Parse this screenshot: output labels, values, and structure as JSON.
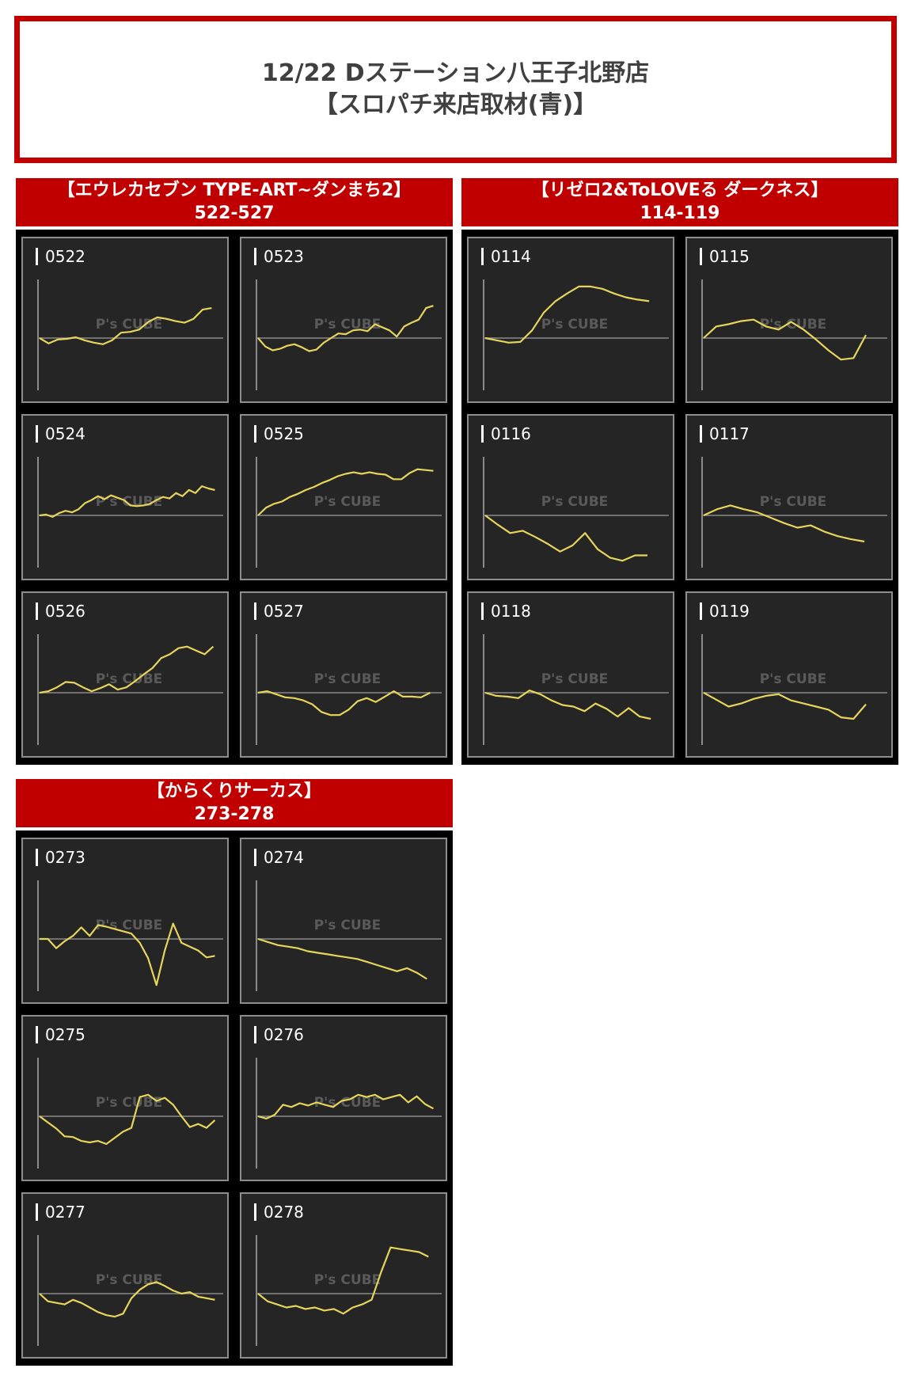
{
  "header": {
    "line1": "12/22 Dステーション八王子北野店",
    "line2": "【スロパチ来店取材(青)】"
  },
  "watermark": {
    "brand": "P's CUBE"
  },
  "colors": {
    "accent": "#c00000",
    "line": "#e6d55a",
    "panel_bg": "#252525"
  },
  "groups": [
    {
      "title": "【エウレカセブン TYPE-ART~ダンまち2】",
      "range": "522-527"
    },
    {
      "title": "【リゼロ2&ToLOVEる ダークネス】",
      "range": "114-119"
    },
    {
      "title": "【からくりサーカス】",
      "range": "273-278"
    }
  ],
  "chart_data": [
    {
      "type": "line",
      "title": "0522",
      "values": [
        0,
        -7,
        -2,
        -1,
        1,
        -3,
        -6,
        -8,
        -3,
        7,
        8,
        11,
        21,
        27,
        25,
        22,
        20,
        25,
        37,
        39
      ]
    },
    {
      "type": "line",
      "title": "0523",
      "values": [
        0,
        -11,
        -16,
        -14,
        -10,
        -8,
        -12,
        -17,
        -15,
        -6,
        0,
        6,
        5,
        10,
        11,
        9,
        18,
        14,
        10,
        2,
        15,
        20,
        24,
        39,
        42
      ]
    },
    {
      "type": "line",
      "title": "0524",
      "values": [
        0,
        1,
        -2,
        3,
        6,
        4,
        8,
        16,
        20,
        25,
        21,
        26,
        23,
        20,
        13,
        12,
        13,
        15,
        20,
        24,
        22,
        29,
        25,
        33,
        29,
        38,
        35,
        33
      ]
    },
    {
      "type": "line",
      "title": "0525",
      "values": [
        0,
        10,
        15,
        18,
        24,
        28,
        33,
        37,
        42,
        46,
        51,
        54,
        56,
        54,
        56,
        54,
        53,
        47,
        47,
        55,
        60,
        59,
        58
      ]
    },
    {
      "type": "line",
      "title": "0526",
      "values": [
        0,
        2,
        7,
        14,
        13,
        7,
        2,
        6,
        11,
        4,
        7,
        15,
        24,
        32,
        45,
        50,
        58,
        60,
        55,
        50,
        60
      ]
    },
    {
      "type": "line",
      "title": "0527",
      "values": [
        0,
        2,
        -2,
        -6,
        -7,
        -10,
        -15,
        -25,
        -29,
        -29,
        -22,
        -11,
        -7,
        -12,
        -5,
        2,
        -5,
        -5,
        -6,
        0
      ]
    },
    {
      "type": "line",
      "title": "0114",
      "values": [
        0,
        -3,
        -6,
        -5,
        10,
        33,
        48,
        58,
        67,
        67,
        64,
        58,
        53,
        50,
        48
      ]
    },
    {
      "type": "line",
      "title": "0115",
      "values": [
        0,
        15,
        18,
        22,
        24,
        15,
        11,
        21,
        11,
        -2,
        -16,
        -28,
        -26,
        4
      ]
    },
    {
      "type": "line",
      "title": "0116",
      "values": [
        0,
        -12,
        -23,
        -20,
        -28,
        -37,
        -47,
        -39,
        -23,
        -44,
        -55,
        -59,
        -52,
        -52
      ]
    },
    {
      "type": "line",
      "title": "0117",
      "values": [
        0,
        8,
        13,
        8,
        4,
        -3,
        -10,
        -16,
        -13,
        -21,
        -27,
        -31,
        -34
      ]
    },
    {
      "type": "line",
      "title": "0118",
      "values": [
        0,
        -4,
        -5,
        -7,
        3,
        -2,
        -10,
        -16,
        -18,
        -24,
        -14,
        -21,
        -31,
        -20,
        -31,
        -34
      ]
    },
    {
      "type": "line",
      "title": "0119",
      "values": [
        0,
        -9,
        -18,
        -14,
        -8,
        -4,
        -2,
        -10,
        -14,
        -18,
        -22,
        -32,
        -34,
        -15
      ]
    },
    {
      "type": "line",
      "title": "0273",
      "values": [
        0,
        0,
        -12,
        -3,
        4,
        15,
        4,
        18,
        16,
        13,
        10,
        7,
        -5,
        -25,
        -60,
        -15,
        20,
        -5,
        -10,
        -15,
        -24,
        -22
      ]
    },
    {
      "type": "line",
      "title": "0274",
      "values": [
        0,
        -4,
        -8,
        -10,
        -12,
        -16,
        -18,
        -20,
        -22,
        -24,
        -26,
        -30,
        -34,
        -38,
        -42,
        -38,
        -44,
        -52
      ]
    },
    {
      "type": "line",
      "title": "0275",
      "values": [
        0,
        -8,
        -16,
        -26,
        -27,
        -32,
        -34,
        -32,
        -36,
        -28,
        -20,
        -15,
        25,
        28,
        20,
        24,
        15,
        0,
        -14,
        -10,
        -15,
        -5
      ]
    },
    {
      "type": "line",
      "title": "0276",
      "values": [
        0,
        -3,
        2,
        15,
        12,
        17,
        14,
        18,
        15,
        12,
        20,
        22,
        28,
        25,
        28,
        22,
        25,
        28,
        18,
        26,
        16,
        10
      ]
    },
    {
      "type": "line",
      "title": "0277",
      "values": [
        0,
        -10,
        -12,
        -14,
        -8,
        -12,
        -18,
        -24,
        -28,
        -30,
        -26,
        -6,
        5,
        12,
        15,
        10,
        4,
        0,
        2,
        -4,
        -6,
        -8
      ]
    },
    {
      "type": "line",
      "title": "0278",
      "values": [
        0,
        -10,
        -14,
        -18,
        -16,
        -20,
        -18,
        -22,
        -20,
        -26,
        -18,
        -14,
        -8,
        28,
        60,
        58,
        56,
        54,
        48
      ]
    }
  ]
}
